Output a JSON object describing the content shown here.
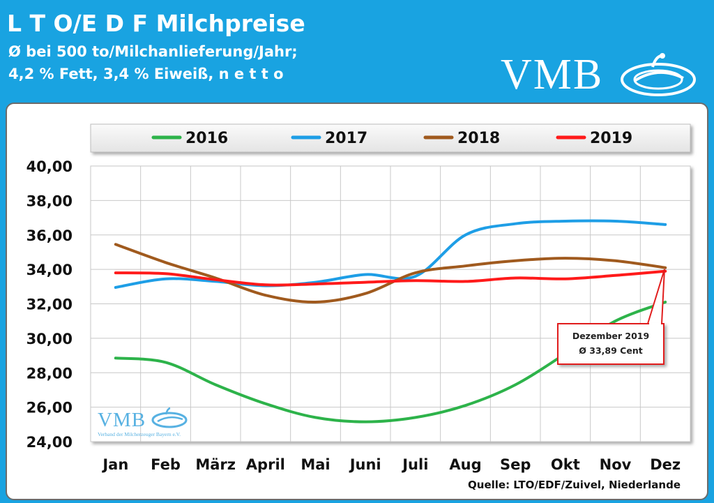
{
  "header": {
    "title": "L T O/E D F Milchpreise",
    "subtitle_line1": "Ø bei 500 to/Milchanlieferung/Jahr;",
    "subtitle_line2": "4,2 % Fett, 3,4 % Eiweiß, n e t t o",
    "logo_text": "VMB"
  },
  "watermark": {
    "logo_text": "VMB",
    "caption": "Verband der Milcherzeuger Bayern e.V."
  },
  "annotation": {
    "line1": "Dezember 2019",
    "line2": "Ø 33,89 Cent"
  },
  "source": "Quelle: LTO/EDF/Zuivel, Niederlande",
  "chart_data": {
    "type": "line",
    "title": "L T O/E D F Milchpreise",
    "xlabel": "",
    "ylabel": "",
    "ylim": [
      24,
      40
    ],
    "yticks": [
      "24,00",
      "26,00",
      "28,00",
      "30,00",
      "32,00",
      "34,00",
      "36,00",
      "38,00",
      "40,00"
    ],
    "categories": [
      "Jan",
      "Feb",
      "März",
      "April",
      "Mai",
      "Juni",
      "Juli",
      "Aug",
      "Sep",
      "Okt",
      "Nov",
      "Dez"
    ],
    "grid": true,
    "legend_position": "top",
    "series": [
      {
        "name": "2016",
        "color": "#2db34a",
        "values": [
          28.85,
          28.6,
          27.3,
          26.2,
          25.4,
          25.15,
          25.4,
          26.1,
          27.3,
          29.1,
          31.0,
          32.1
        ]
      },
      {
        "name": "2017",
        "color": "#1e9ee6",
        "values": [
          32.95,
          33.45,
          33.3,
          33.05,
          33.25,
          33.7,
          33.6,
          36.0,
          36.65,
          36.8,
          36.8,
          36.6
        ]
      },
      {
        "name": "2018",
        "color": "#a05a1e",
        "values": [
          35.45,
          34.4,
          33.5,
          32.5,
          32.1,
          32.6,
          33.8,
          34.2,
          34.5,
          34.65,
          34.5,
          34.1
        ]
      },
      {
        "name": "2019",
        "color": "#ff1a1a",
        "values": [
          33.8,
          33.75,
          33.4,
          33.1,
          33.15,
          33.25,
          33.35,
          33.3,
          33.5,
          33.45,
          33.65,
          33.89
        ]
      }
    ]
  }
}
